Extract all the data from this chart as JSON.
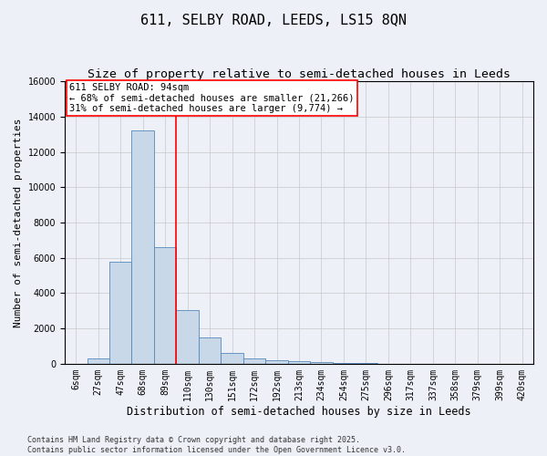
{
  "title": "611, SELBY ROAD, LEEDS, LS15 8QN",
  "subtitle": "Size of property relative to semi-detached houses in Leeds",
  "xlabel": "Distribution of semi-detached houses by size in Leeds",
  "ylabel": "Number of semi-detached properties",
  "bin_labels": [
    "6sqm",
    "27sqm",
    "47sqm",
    "68sqm",
    "89sqm",
    "110sqm",
    "130sqm",
    "151sqm",
    "172sqm",
    "192sqm",
    "213sqm",
    "234sqm",
    "254sqm",
    "275sqm",
    "296sqm",
    "317sqm",
    "337sqm",
    "358sqm",
    "379sqm",
    "399sqm",
    "420sqm"
  ],
  "bar_values": [
    0,
    300,
    5800,
    13200,
    6600,
    3050,
    1500,
    600,
    300,
    220,
    150,
    100,
    50,
    20,
    10,
    5,
    3,
    2,
    0,
    0,
    0
  ],
  "bar_color": "#c8d8e8",
  "bar_edge_color": "#5588bb",
  "grid_color": "#c8c8c8",
  "background_color": "#edf1f7",
  "red_line_x": 4.5,
  "red_line_color": "red",
  "annotation_line1": "611 SELBY ROAD: 94sqm",
  "annotation_line2": "← 68% of semi-detached houses are smaller (21,266)",
  "annotation_line3": "31% of semi-detached houses are larger (9,774) →",
  "annotation_box_color": "white",
  "annotation_box_edge": "red",
  "ylim": [
    0,
    16000
  ],
  "yticks": [
    0,
    2000,
    4000,
    6000,
    8000,
    10000,
    12000,
    14000,
    16000
  ],
  "footer_line1": "Contains HM Land Registry data © Crown copyright and database right 2025.",
  "footer_line2": "Contains public sector information licensed under the Open Government Licence v3.0.",
  "title_fontsize": 11,
  "subtitle_fontsize": 9.5,
  "tick_fontsize": 7,
  "ylabel_fontsize": 8,
  "xlabel_fontsize": 8.5,
  "annotation_fontsize": 7.5,
  "footer_fontsize": 6
}
